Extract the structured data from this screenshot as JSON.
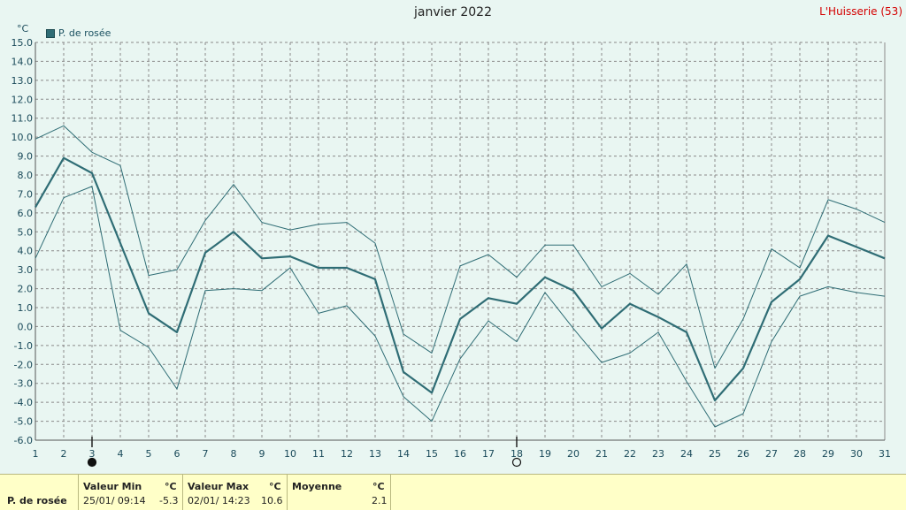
{
  "header": {
    "title": "janvier 2022",
    "location": "L'Huisserie (53)",
    "unit": "°C"
  },
  "legend": {
    "series_label": "P. de rosée",
    "color": "#2f6d75"
  },
  "chart_data": {
    "type": "line",
    "title": "janvier 2022",
    "ylabel": "°C",
    "ylim": [
      -6.0,
      15.0
    ],
    "y_ticks": [
      "15.0",
      "14.0",
      "13.0",
      "12.0",
      "11.0",
      "10.0",
      "9.0",
      "8.0",
      "7.0",
      "6.0",
      "5.0",
      "4.0",
      "3.0",
      "2.0",
      "1.0",
      "0.0",
      "-1.0",
      "-2.0",
      "-3.0",
      "-4.0",
      "-5.0",
      "-6.0"
    ],
    "x": [
      1,
      2,
      3,
      4,
      5,
      6,
      7,
      8,
      9,
      10,
      11,
      12,
      13,
      14,
      15,
      16,
      17,
      18,
      19,
      20,
      21,
      22,
      23,
      24,
      25,
      26,
      27,
      28,
      29,
      30,
      31
    ],
    "grid": true,
    "legend_position": "top-left",
    "series": [
      {
        "name": "P. de rosée",
        "role": "mean",
        "values": [
          6.3,
          8.9,
          8.1,
          4.4,
          0.7,
          -0.3,
          3.9,
          5.0,
          3.6,
          3.7,
          3.1,
          3.1,
          2.5,
          -2.4,
          -3.5,
          0.4,
          1.5,
          1.2,
          2.6,
          1.9,
          -0.1,
          1.2,
          0.5,
          -0.3,
          -3.9,
          -2.2,
          1.3,
          2.5,
          4.8,
          4.2,
          3.6
        ]
      },
      {
        "role": "max",
        "values": [
          9.9,
          10.6,
          9.2,
          8.5,
          2.7,
          3.0,
          5.6,
          7.5,
          5.5,
          5.1,
          5.4,
          5.5,
          4.4,
          -0.4,
          -1.4,
          3.2,
          3.8,
          2.6,
          4.3,
          4.3,
          2.1,
          2.8,
          1.7,
          3.3,
          -2.2,
          0.4,
          4.1,
          3.1,
          6.7,
          6.2,
          5.5
        ]
      },
      {
        "role": "min",
        "values": [
          3.6,
          6.8,
          7.4,
          -0.2,
          -1.1,
          -3.3,
          1.9,
          2.0,
          1.9,
          3.1,
          0.7,
          1.1,
          -0.5,
          -3.7,
          -5.0,
          -1.7,
          0.3,
          -0.8,
          1.8,
          -0.1,
          -1.9,
          -1.4,
          -0.3,
          -2.9,
          -5.3,
          -4.6,
          -0.8,
          1.6,
          2.1,
          1.8,
          1.6
        ]
      }
    ],
    "moon_phases": [
      {
        "day": 3,
        "phase": "new"
      },
      {
        "day": 18,
        "phase": "full"
      }
    ]
  },
  "footer": {
    "series_label": "P. de rosée",
    "min": {
      "label": "Valeur Min",
      "unit": "°C",
      "date": "25/01/ 09:14",
      "value": "-5.3"
    },
    "max": {
      "label": "Valeur Max",
      "unit": "°C",
      "date": "02/01/ 14:23",
      "value": "10.6"
    },
    "mean": {
      "label": "Moyenne",
      "unit": "°C",
      "value": "2.1"
    }
  },
  "colors": {
    "background": "#e9f6f2",
    "line": "#2f6d75",
    "grid": "#8a8a8a",
    "footer_bg": "#ffffc8",
    "location": "#d40000"
  }
}
